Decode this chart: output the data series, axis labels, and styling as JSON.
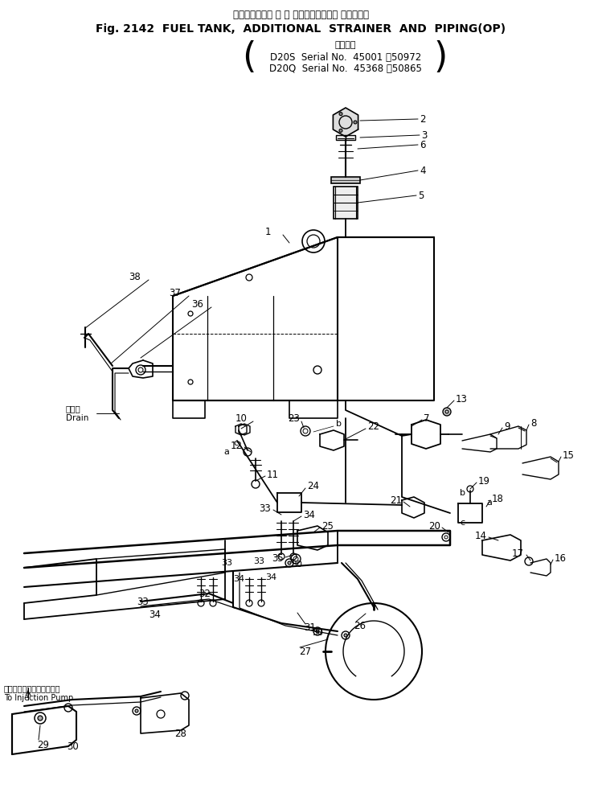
{
  "title_jp": "フェルタンク， 増 設 ストレーナおよび パイピング",
  "title_en": "Fig. 2142  FUEL TANK,  ADDITIONAL  STRAINER  AND  PIPING(OP)",
  "serial_label_jp": "適用号機",
  "serial_d20s": "D20S  Serial No.  45001 ～50972",
  "serial_d20q": "D20Q  Serial No.  45368 ～50865",
  "drain_jp": "ドレン",
  "drain_en": "Drain",
  "injection_jp": "インジェクションポンプへ",
  "injection_en": "To Injection Pump",
  "bg_color": "#ffffff",
  "lc": "#000000"
}
